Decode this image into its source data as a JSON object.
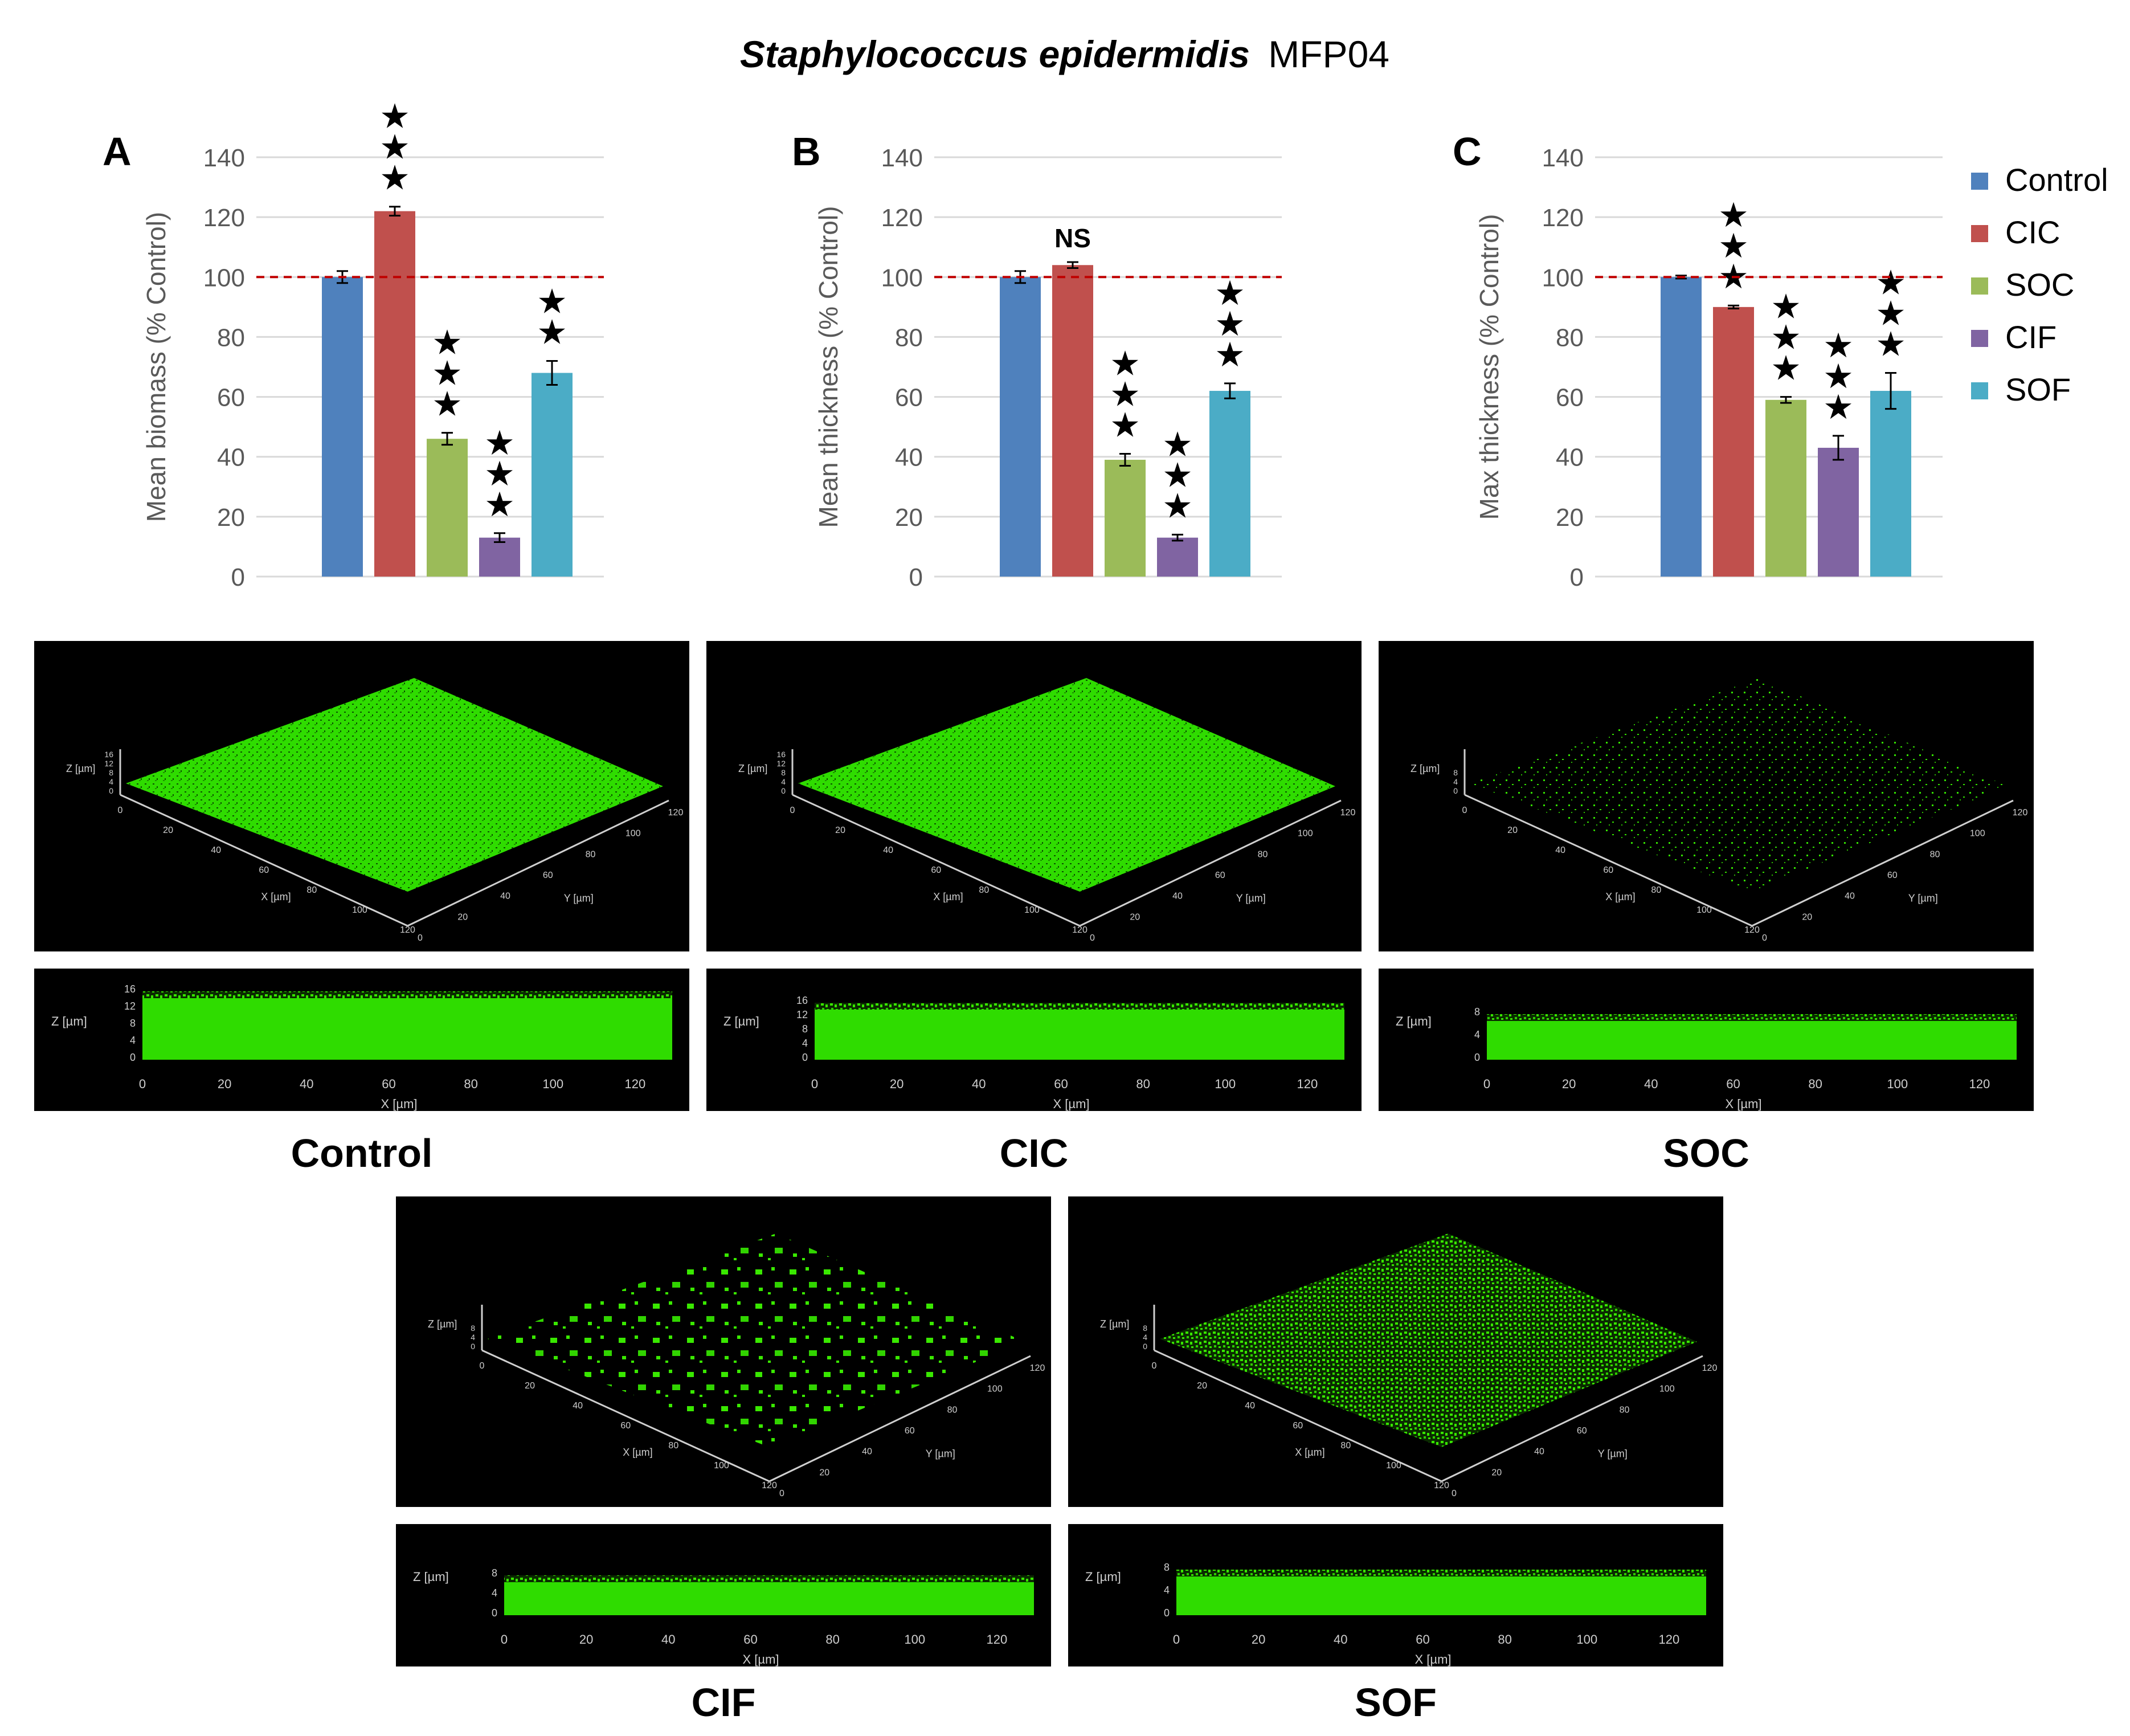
{
  "figure": {
    "title_italic": "Staphylococcus epidermidis",
    "title_rest": "MFP04"
  },
  "chart_data": [
    {
      "type": "bar",
      "panel_letter": "A",
      "ylabel": "Mean biomass (% Control)",
      "categories": [
        "Control",
        "CIC",
        "SOC",
        "CIF",
        "SOF"
      ],
      "values": [
        100,
        122,
        46,
        13,
        68
      ],
      "errors": [
        2,
        1.5,
        2,
        1.5,
        4
      ],
      "significance": [
        "",
        "***",
        "***",
        "***",
        "**"
      ],
      "ylim": [
        0,
        140
      ],
      "yticks": [
        "0",
        "20",
        "40",
        "60",
        "80",
        "100",
        "120",
        "140"
      ],
      "reference_line": 100
    },
    {
      "type": "bar",
      "panel_letter": "B",
      "ylabel": "Mean thickness (% Control)",
      "categories": [
        "Control",
        "CIC",
        "SOC",
        "CIF",
        "SOF"
      ],
      "values": [
        100,
        104,
        39,
        13,
        62
      ],
      "errors": [
        2,
        1,
        2,
        1,
        2.5
      ],
      "significance": [
        "",
        "NS",
        "***",
        "***",
        "***"
      ],
      "ylim": [
        0,
        140
      ],
      "yticks": [
        "0",
        "20",
        "40",
        "60",
        "80",
        "100",
        "120",
        "140"
      ],
      "reference_line": 100
    },
    {
      "type": "bar",
      "panel_letter": "C",
      "ylabel": "Max thickness (% Control)",
      "categories": [
        "Control",
        "CIC",
        "SOC",
        "CIF",
        "SOF"
      ],
      "values": [
        100,
        90,
        59,
        43,
        62
      ],
      "errors": [
        0.5,
        0.5,
        1,
        4,
        6
      ],
      "significance": [
        "",
        "***",
        "***",
        "***",
        "***"
      ],
      "ylim": [
        0,
        140
      ],
      "yticks": [
        "0",
        "20",
        "40",
        "60",
        "80",
        "100",
        "120",
        "140"
      ],
      "reference_line": 100
    }
  ],
  "legend": {
    "entries": [
      "Control",
      "CIC",
      "SOC",
      "CIF",
      "SOF"
    ]
  },
  "series_colors": [
    "#4f81bd",
    "#c0504d",
    "#9bbb59",
    "#8064a2",
    "#4bacc6"
  ],
  "reference_line_color": "#c00000",
  "micrograph_axes": {
    "x_label": "X [µm]",
    "y_label": "Y [µm]",
    "z_label": "Z [µm]",
    "xy_ticks": [
      "0",
      "20",
      "40",
      "60",
      "80",
      "100",
      "120"
    ],
    "z_ticks_control": [
      "0",
      "4",
      "8",
      "12",
      "16"
    ],
    "z_ticks_cic": [
      "0",
      "4",
      "8",
      "12",
      "16"
    ],
    "z_ticks_soc": [
      "0",
      "4",
      "8"
    ],
    "z_ticks_cif": [
      "0",
      "4",
      "8"
    ],
    "z_ticks_sof": [
      "0",
      "4",
      "8"
    ]
  },
  "micrographs": [
    {
      "label": "Control"
    },
    {
      "label": "CIC"
    },
    {
      "label": "SOC"
    },
    {
      "label": "CIF"
    },
    {
      "label": "SOF"
    }
  ]
}
